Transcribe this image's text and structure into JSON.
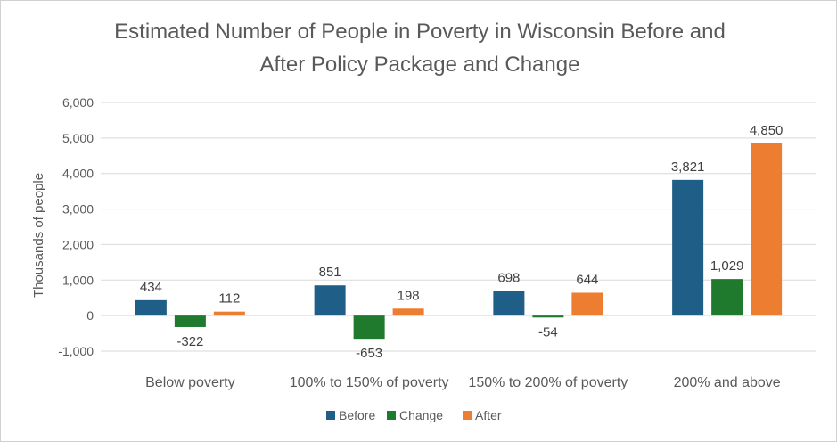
{
  "chart_data": {
    "type": "bar",
    "title": [
      "Estimated Number of People in Poverty in Wisconsin Before and",
      "After Policy Package and Change"
    ],
    "ylabel": "Thousands of people",
    "xlabel": "",
    "categories": [
      "Below poverty",
      "100% to 150% of poverty",
      "150% to 200% of poverty",
      "200% and above"
    ],
    "series": [
      {
        "name": "Before",
        "color": "#1f5f87",
        "values": [
          434,
          851,
          698,
          3821
        ],
        "labels": [
          "434",
          "851",
          "698",
          "3,821"
        ]
      },
      {
        "name": "Change",
        "color": "#1f7a2e",
        "values": [
          -322,
          -653,
          -54,
          1029
        ],
        "labels": [
          "-322",
          "-653",
          "-54",
          "1,029"
        ]
      },
      {
        "name": "After",
        "color": "#ed7d31",
        "values": [
          112,
          198,
          644,
          4850
        ],
        "labels": [
          "112",
          "198",
          "644",
          "4,850"
        ]
      }
    ],
    "ylim": [
      -1000,
      6000
    ],
    "yticks": [
      -1000,
      0,
      1000,
      2000,
      3000,
      4000,
      5000,
      6000
    ],
    "ytick_labels": [
      "-1,000",
      "0",
      "1,000",
      "2,000",
      "3,000",
      "4,000",
      "5,000",
      "6,000"
    ],
    "grid": true,
    "legend_position": "bottom"
  }
}
